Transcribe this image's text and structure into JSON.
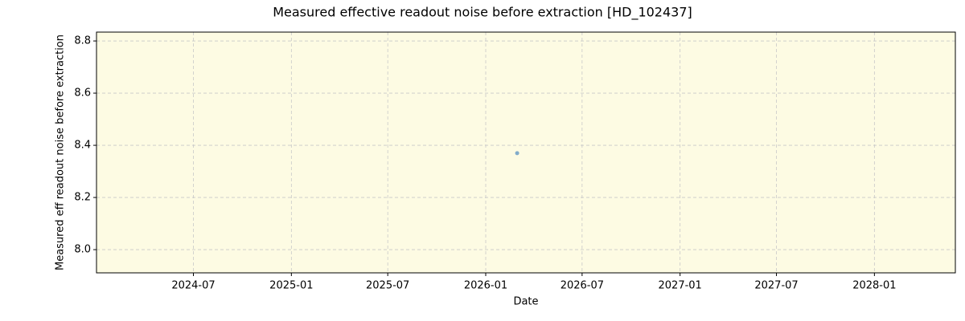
{
  "chart_data": {
    "type": "scatter",
    "title": "Measured effective readout noise before extraction [HD_102437]",
    "xlabel": "Date",
    "ylabel": "Measured eff readout noise before extraction",
    "x": [
      "2026-03"
    ],
    "values": [
      8.37
    ],
    "color": "#6c9ec6",
    "xlim": [
      "2024-01",
      "2028-06"
    ],
    "xticks": [
      "2024-07",
      "2025-01",
      "2025-07",
      "2026-01",
      "2026-07",
      "2027-01",
      "2027-07",
      "2028-01"
    ],
    "ylim": [
      7.911,
      8.834
    ],
    "yticks": [
      {
        "value": 8,
        "label": "8.0"
      },
      8.2,
      8.4,
      8.6,
      8.8
    ],
    "grid": true,
    "background": "#fdfbe3"
  }
}
